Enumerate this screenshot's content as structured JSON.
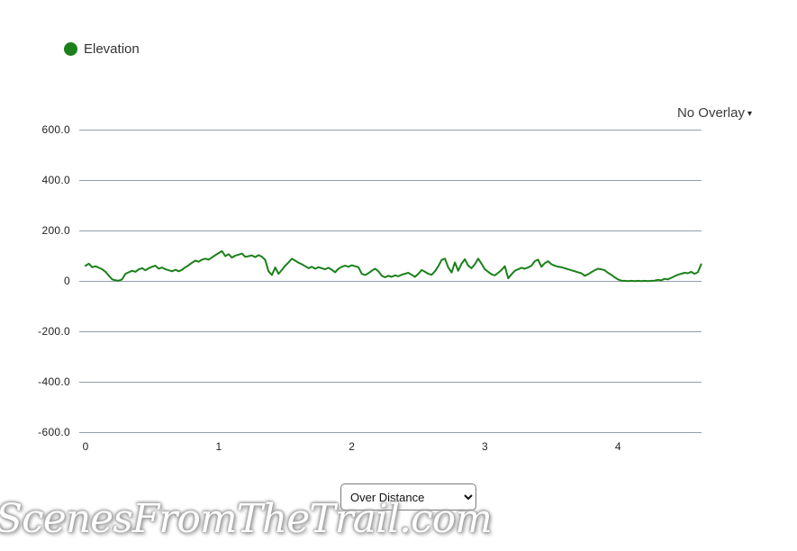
{
  "legend": {
    "label": "Elevation",
    "dot_color": "#1a801a"
  },
  "overlay_dropdown": {
    "label": "No Overlay",
    "caret": "▾"
  },
  "mode_select": {
    "selected": "Over Distance"
  },
  "watermark": {
    "text": "ScenesFromTheTrail.com"
  },
  "chart_data": {
    "type": "line",
    "title": "",
    "xlabel": "",
    "ylabel": "",
    "ylim": [
      -600,
      600
    ],
    "xlim": [
      0,
      4.63
    ],
    "grid": true,
    "gridline_color": "#939dac",
    "legend_position": "top-left",
    "y_ticks": [
      {
        "label": "600.0",
        "value": 600
      },
      {
        "label": "400.0",
        "value": 400
      },
      {
        "label": "200.0",
        "value": 200
      },
      {
        "label": "0",
        "value": 0
      },
      {
        "label": "-200.0",
        "value": -200
      },
      {
        "label": "-400.0",
        "value": -400
      },
      {
        "label": "-600.0",
        "value": -600
      }
    ],
    "x_ticks": [
      {
        "label": "0",
        "value": 0
      },
      {
        "label": "1",
        "value": 1
      },
      {
        "label": "2",
        "value": 2
      },
      {
        "label": "3",
        "value": 3
      },
      {
        "label": "4",
        "value": 4
      }
    ],
    "series": [
      {
        "name": "Elevation",
        "color": "#1a801a",
        "x_start": 0,
        "x_step": 0.025,
        "values": [
          62,
          70,
          56,
          60,
          54,
          48,
          38,
          22,
          8,
          4,
          3,
          8,
          30,
          36,
          42,
          38,
          48,
          52,
          44,
          52,
          58,
          62,
          50,
          55,
          48,
          44,
          40,
          46,
          40,
          46,
          56,
          64,
          74,
          82,
          78,
          86,
          90,
          86,
          95,
          104,
          112,
          120,
          100,
          108,
          94,
          102,
          106,
          110,
          97,
          100,
          103,
          96,
          104,
          98,
          85,
          40,
          25,
          55,
          30,
          45,
          62,
          75,
          90,
          82,
          74,
          68,
          60,
          52,
          58,
          50,
          56,
          52,
          48,
          54,
          46,
          36,
          50,
          58,
          62,
          58,
          64,
          60,
          56,
          30,
          25,
          32,
          42,
          50,
          40,
          22,
          16,
          22,
          18,
          24,
          20,
          26,
          30,
          34,
          26,
          18,
          30,
          45,
          38,
          30,
          26,
          40,
          60,
          85,
          90,
          55,
          35,
          75,
          42,
          70,
          88,
          62,
          52,
          68,
          90,
          70,
          48,
          38,
          28,
          24,
          34,
          45,
          60,
          12,
          28,
          42,
          48,
          54,
          50,
          55,
          62,
          80,
          86,
          58,
          72,
          80,
          68,
          62,
          58,
          56,
          52,
          48,
          44,
          40,
          36,
          32,
          22,
          28,
          36,
          44,
          50,
          48,
          44,
          34,
          26,
          16,
          8,
          3,
          2,
          1,
          2,
          1,
          2,
          1,
          2,
          1,
          2,
          3,
          6,
          4,
          10,
          8,
          14,
          20,
          26,
          30,
          34,
          32,
          38,
          30,
          36,
          68
        ]
      }
    ]
  }
}
